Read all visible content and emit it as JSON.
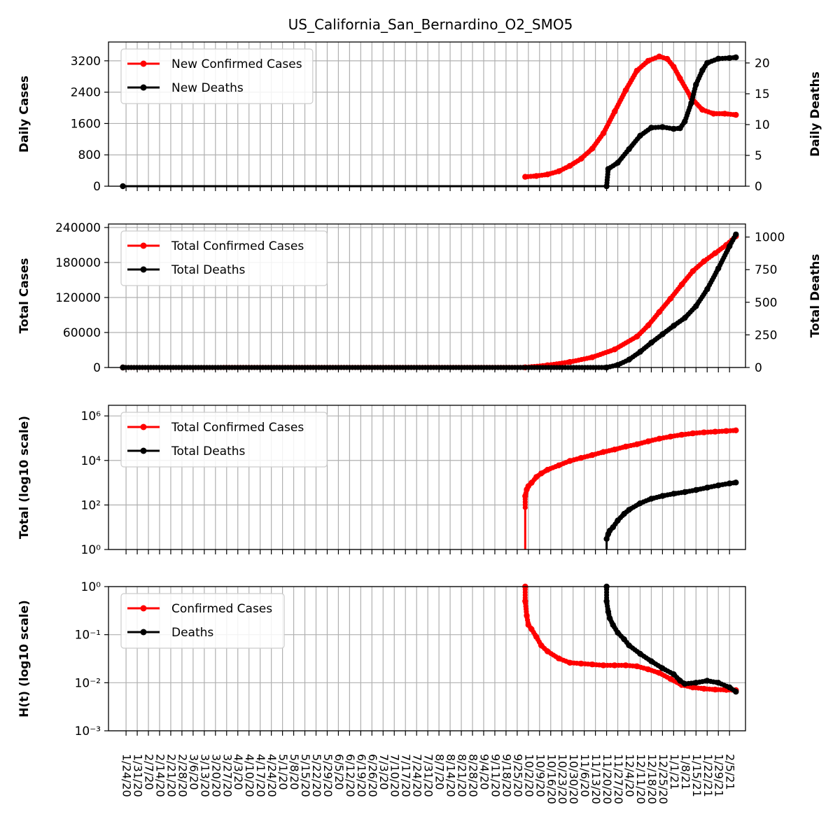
{
  "title": "US_California_San_Bernardino_O2_SMO5",
  "colors": {
    "cases": "#ff0000",
    "deaths": "#000000",
    "grid": "#b0b0b0"
  },
  "x_dates": [
    "1/24/20",
    "1/31/20",
    "2/7/20",
    "2/14/20",
    "2/21/20",
    "2/28/20",
    "3/6/20",
    "3/13/20",
    "3/20/20",
    "3/27/20",
    "4/3/20",
    "4/10/20",
    "4/17/20",
    "4/24/20",
    "5/1/20",
    "5/8/20",
    "5/15/20",
    "5/22/20",
    "5/29/20",
    "6/5/20",
    "6/12/20",
    "6/19/20",
    "6/26/20",
    "7/3/20",
    "7/10/20",
    "7/17/20",
    "7/24/20",
    "7/31/20",
    "8/7/20",
    "8/14/20",
    "8/21/20",
    "8/28/20",
    "9/4/20",
    "9/11/20",
    "9/18/20",
    "9/25/20",
    "10/2/20",
    "10/9/20",
    "10/16/20",
    "10/23/20",
    "10/30/20",
    "11/6/20",
    "11/13/20",
    "11/20/20",
    "11/27/20",
    "12/4/20",
    "12/11/20",
    "12/18/20",
    "12/25/20",
    "1/1/21",
    "1/8/21",
    "1/15/21",
    "1/22/21",
    "1/29/21",
    "2/5/21"
  ],
  "chart_data": [
    {
      "type": "line",
      "ylabel": "Daily Cases",
      "ylabel_right": "Daily Deaths",
      "yticks": [
        0,
        800,
        1600,
        2400,
        3200
      ],
      "yticks_right": [
        0,
        5,
        10,
        15,
        20
      ],
      "ylim": [
        0,
        3680
      ],
      "ylim_right": [
        0,
        23.4
      ],
      "legend": {
        "placement": "upper-left",
        "entries": [
          "New Confirmed Cases",
          "New Deaths"
        ]
      },
      "series": [
        {
          "name": "New Confirmed Cases",
          "axis": "left",
          "x": [
            "9/30/20",
            "10/7/20",
            "10/14/20",
            "10/21/20",
            "10/28/20",
            "11/4/20",
            "11/11/20",
            "11/18/20",
            "11/25/20",
            "12/2/20",
            "12/9/20",
            "12/16/20",
            "12/23/20",
            "12/28/20",
            "1/1/21",
            "1/5/21",
            "1/12/21",
            "1/19/21",
            "1/26/21",
            "2/2/21",
            "2/9/21"
          ],
          "values": [
            240,
            260,
            300,
            380,
            520,
            700,
            960,
            1350,
            1900,
            2450,
            2950,
            3200,
            3310,
            3250,
            3050,
            2750,
            2250,
            1950,
            1850,
            1850,
            1820
          ]
        },
        {
          "name": "New Deaths",
          "axis": "right",
          "x": [
            "1/22/20",
            "11/20/20",
            "11/21/20",
            "11/27/20",
            "12/4/20",
            "12/11/20",
            "12/18/20",
            "12/25/20",
            "1/1/21",
            "1/5/21",
            "1/8/21",
            "1/12/21",
            "1/15/21",
            "1/19/21",
            "1/22/21",
            "1/29/21",
            "2/5/21",
            "2/9/21"
          ],
          "values": [
            0,
            0,
            2.8,
            3.8,
            6,
            8.2,
            9.5,
            9.6,
            9.3,
            9.4,
            10.5,
            13.5,
            16.5,
            18.8,
            20,
            20.7,
            20.8,
            20.9
          ]
        }
      ]
    },
    {
      "type": "line",
      "ylabel": "Total Cases",
      "ylabel_right": "Total Deaths",
      "yticks": [
        0,
        60000,
        120000,
        180000,
        240000
      ],
      "yticks_right": [
        0,
        250,
        500,
        750,
        1000
      ],
      "ylim": [
        0,
        246000
      ],
      "ylim_right": [
        0,
        1100
      ],
      "legend": {
        "placement": "upper-left",
        "entries": [
          "Total Confirmed Cases",
          "Total Deaths"
        ]
      },
      "series": [
        {
          "name": "Total Confirmed Cases",
          "axis": "left",
          "x": [
            "1/22/20",
            "9/30/20",
            "10/14/20",
            "10/28/20",
            "11/11/20",
            "11/25/20",
            "12/9/20",
            "12/16/20",
            "12/23/20",
            "12/30/20",
            "1/6/21",
            "1/13/21",
            "1/20/21",
            "1/27/21",
            "2/3/21",
            "2/9/21"
          ],
          "values": [
            0,
            250,
            3800,
            9500,
            17500,
            31000,
            53000,
            72000,
            95000,
            118000,
            142000,
            165000,
            182000,
            196000,
            210000,
            225000
          ]
        },
        {
          "name": "Total Deaths",
          "axis": "right",
          "x": [
            "1/22/20",
            "11/20/20",
            "11/27/20",
            "12/4/20",
            "12/11/20",
            "12/18/20",
            "12/25/20",
            "1/1/21",
            "1/8/21",
            "1/15/21",
            "1/22/21",
            "1/29/21",
            "2/5/21",
            "2/9/21"
          ],
          "values": [
            0,
            0,
            20,
            60,
            120,
            190,
            255,
            320,
            380,
            470,
            600,
            760,
            930,
            1020
          ]
        }
      ]
    },
    {
      "type": "line",
      "log_scale": "y",
      "ylabel": "Total (log10 scale)",
      "yticks": [
        "10^0",
        "10^2",
        "10^4",
        "10^6"
      ],
      "ylim": [
        1,
        3000000
      ],
      "legend": {
        "placement": "upper-left",
        "entries": [
          "Total Confirmed Cases",
          "Total Deaths"
        ]
      },
      "series": [
        {
          "name": "Total Confirmed Cases",
          "x": [
            "9/30/20",
            "9/30/20",
            "10/1/20",
            "10/2/20",
            "10/4/20",
            "10/7/20",
            "10/10/20",
            "10/14/20",
            "10/21/20",
            "10/28/20",
            "11/4/20",
            "11/11/20",
            "11/18/20",
            "11/25/20",
            "12/2/20",
            "12/9/20",
            "12/16/20",
            "12/23/20",
            "12/30/20",
            "1/6/21",
            "1/13/21",
            "1/20/21",
            "1/27/21",
            "2/3/21",
            "2/9/21"
          ],
          "values": [
            1,
            250,
            500,
            700,
            1000,
            1800,
            2600,
            3800,
            6000,
            9500,
            13000,
            17500,
            24000,
            31000,
            42000,
            53000,
            72000,
            95000,
            118000,
            142000,
            165000,
            182000,
            196000,
            210000,
            225000
          ]
        },
        {
          "name": "Total Deaths",
          "x": [
            "11/20/20",
            "11/20/20",
            "11/21/20",
            "11/22/20",
            "11/24/20",
            "11/27/20",
            "12/1/20",
            "12/4/20",
            "12/11/20",
            "12/18/20",
            "12/25/20",
            "1/1/21",
            "1/8/21",
            "1/15/21",
            "1/22/21",
            "1/29/21",
            "2/5/21",
            "2/9/21"
          ],
          "values": [
            1,
            3,
            5,
            7,
            10,
            20,
            40,
            60,
            120,
            190,
            255,
            320,
            380,
            470,
            600,
            760,
            930,
            1020
          ]
        }
      ]
    },
    {
      "type": "line",
      "log_scale": "y",
      "ylabel": "H(t) (log10 scale)",
      "yticks": [
        "10^-3",
        "10^-2",
        "10^-1",
        "10^0"
      ],
      "ylim": [
        0.001,
        1
      ],
      "legend": {
        "placement": "upper-left",
        "entries": [
          "Confirmed Cases",
          "Deaths"
        ]
      },
      "series": [
        {
          "name": "Confirmed Cases",
          "x": [
            "9/30/20",
            "9/30/20",
            "10/1/20",
            "10/2/20",
            "10/4/20",
            "10/7/20",
            "10/10/20",
            "10/14/20",
            "10/21/20",
            "10/28/20",
            "11/4/20",
            "11/11/20",
            "11/18/20",
            "11/25/20",
            "12/2/20",
            "12/9/20",
            "12/16/20",
            "12/23/20",
            "12/30/20",
            "1/6/21",
            "1/13/21",
            "1/20/21",
            "1/27/21",
            "2/3/21",
            "2/9/21"
          ],
          "values": [
            1,
            0.5,
            0.25,
            0.16,
            0.13,
            0.09,
            0.06,
            0.045,
            0.032,
            0.026,
            0.025,
            0.024,
            0.023,
            0.023,
            0.023,
            0.022,
            0.019,
            0.016,
            0.012,
            0.009,
            0.008,
            0.0075,
            0.0072,
            0.0071,
            0.007
          ]
        },
        {
          "name": "Deaths",
          "x": [
            "11/20/20",
            "11/20/20",
            "11/21/20",
            "11/22/20",
            "11/24/20",
            "11/27/20",
            "12/1/20",
            "12/4/20",
            "12/11/20",
            "12/18/20",
            "12/25/20",
            "1/1/21",
            "1/5/21",
            "1/8/21",
            "1/15/21",
            "1/22/21",
            "1/29/21",
            "2/5/21",
            "2/9/21"
          ],
          "values": [
            1,
            0.5,
            0.3,
            0.22,
            0.16,
            0.11,
            0.08,
            0.06,
            0.04,
            0.028,
            0.02,
            0.015,
            0.011,
            0.0095,
            0.01,
            0.011,
            0.01,
            0.008,
            0.0065
          ]
        }
      ]
    }
  ]
}
